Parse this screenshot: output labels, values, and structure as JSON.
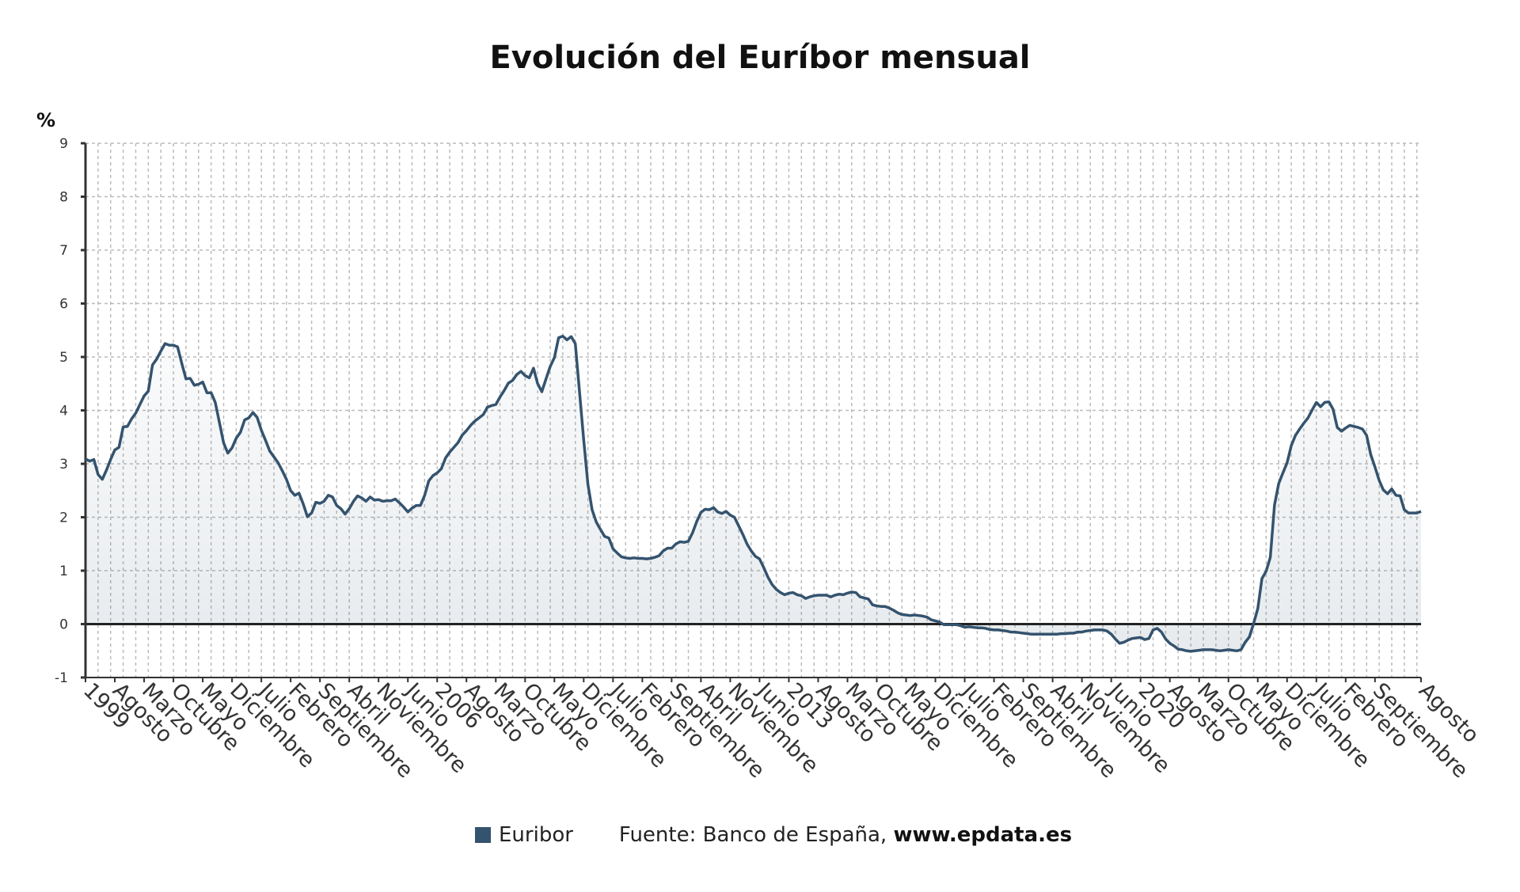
{
  "chart_data": {
    "type": "area",
    "title": "Evolución del Euríbor mensual",
    "ylabel": "%",
    "xlabel": "",
    "ylim": [
      -1,
      9
    ],
    "yticks": [
      -1,
      0,
      1,
      2,
      3,
      4,
      5,
      6,
      7,
      8,
      9
    ],
    "grid": true,
    "legend_position": "bottom",
    "start": "1999-01",
    "end": "2025-08",
    "x_tick_labels": [
      "1999",
      "Agosto",
      "Marzo",
      "Octubre",
      "Mayo",
      "Diciembre",
      "Julio",
      "Febrero",
      "Septiembre",
      "Abril",
      "Noviembre",
      "Junio",
      "2006",
      "Agosto",
      "Marzo",
      "Octubre",
      "Mayo",
      "Diciembre",
      "Julio",
      "Febrero",
      "Septiembre",
      "Abril",
      "Noviembre",
      "Junio",
      "2013",
      "Agosto",
      "Marzo",
      "Octubre",
      "Mayo",
      "Diciembre",
      "Julio",
      "Febrero",
      "Septiembre",
      "Abril",
      "Noviembre",
      "Junio",
      "2020",
      "Agosto",
      "Marzo",
      "Octubre",
      "Mayo",
      "Diciembre",
      "Julio",
      "Febrero",
      "Septiembre",
      "Agosto"
    ],
    "x_tick_dates": [
      "1999-01",
      "1999-08",
      "2000-03",
      "2000-10",
      "2001-05",
      "2001-12",
      "2002-07",
      "2003-02",
      "2003-09",
      "2004-04",
      "2004-11",
      "2005-06",
      "2006-01",
      "2006-08",
      "2007-03",
      "2007-10",
      "2008-05",
      "2008-12",
      "2009-07",
      "2010-02",
      "2010-09",
      "2011-04",
      "2011-11",
      "2012-06",
      "2013-01",
      "2013-08",
      "2014-03",
      "2014-10",
      "2015-05",
      "2015-12",
      "2016-07",
      "2017-02",
      "2017-09",
      "2018-04",
      "2018-11",
      "2019-06",
      "2020-01",
      "2020-08",
      "2021-03",
      "2021-10",
      "2022-05",
      "2022-12",
      "2023-07",
      "2024-02",
      "2024-09",
      "2025-08"
    ],
    "series": [
      {
        "name": "Euribor",
        "color": "#34536e",
        "values": [
          3.09,
          3.05,
          3.08,
          2.8,
          2.71,
          2.88,
          3.08,
          3.26,
          3.31,
          3.69,
          3.7,
          3.84,
          3.95,
          4.11,
          4.27,
          4.36,
          4.85,
          4.96,
          5.11,
          5.25,
          5.22,
          5.22,
          5.19,
          4.88,
          4.59,
          4.6,
          4.47,
          4.49,
          4.53,
          4.33,
          4.33,
          4.15,
          3.77,
          3.39,
          3.2,
          3.3,
          3.48,
          3.59,
          3.82,
          3.86,
          3.96,
          3.87,
          3.63,
          3.44,
          3.24,
          3.13,
          3.02,
          2.87,
          2.71,
          2.5,
          2.41,
          2.45,
          2.25,
          2.01,
          2.08,
          2.28,
          2.26,
          2.3,
          2.41,
          2.38,
          2.22,
          2.16,
          2.06,
          2.16,
          2.3,
          2.4,
          2.36,
          2.3,
          2.38,
          2.32,
          2.33,
          2.3,
          2.31,
          2.31,
          2.34,
          2.27,
          2.19,
          2.1,
          2.17,
          2.22,
          2.22,
          2.41,
          2.68,
          2.78,
          2.83,
          2.91,
          3.11,
          3.22,
          3.31,
          3.4,
          3.54,
          3.62,
          3.72,
          3.8,
          3.86,
          3.92,
          4.06,
          4.09,
          4.11,
          4.25,
          4.37,
          4.51,
          4.56,
          4.67,
          4.73,
          4.65,
          4.61,
          4.79,
          4.5,
          4.35,
          4.59,
          4.82,
          4.99,
          5.36,
          5.39,
          5.32,
          5.38,
          5.25,
          4.35,
          3.45,
          2.62,
          2.14,
          1.91,
          1.77,
          1.64,
          1.61,
          1.41,
          1.33,
          1.26,
          1.24,
          1.23,
          1.24,
          1.23,
          1.23,
          1.22,
          1.23,
          1.25,
          1.28,
          1.37,
          1.42,
          1.42,
          1.5,
          1.54,
          1.53,
          1.55,
          1.71,
          1.92,
          2.09,
          2.15,
          2.14,
          2.18,
          2.1,
          2.07,
          2.11,
          2.04,
          2.0,
          1.84,
          1.68,
          1.5,
          1.37,
          1.27,
          1.22,
          1.06,
          0.88,
          0.74,
          0.65,
          0.59,
          0.55,
          0.58,
          0.59,
          0.55,
          0.53,
          0.48,
          0.51,
          0.53,
          0.54,
          0.54,
          0.54,
          0.51,
          0.54,
          0.56,
          0.55,
          0.58,
          0.6,
          0.59,
          0.51,
          0.49,
          0.47,
          0.36,
          0.34,
          0.33,
          0.33,
          0.3,
          0.26,
          0.21,
          0.18,
          0.17,
          0.16,
          0.17,
          0.16,
          0.15,
          0.13,
          0.08,
          0.06,
          0.04,
          -0.01,
          -0.01,
          -0.01,
          -0.01,
          -0.03,
          -0.06,
          -0.05,
          -0.06,
          -0.07,
          -0.07,
          -0.08,
          -0.1,
          -0.11,
          -0.11,
          -0.12,
          -0.13,
          -0.15,
          -0.15,
          -0.16,
          -0.17,
          -0.18,
          -0.19,
          -0.19,
          -0.19,
          -0.19,
          -0.19,
          -0.19,
          -0.19,
          -0.18,
          -0.18,
          -0.17,
          -0.17,
          -0.15,
          -0.15,
          -0.13,
          -0.12,
          -0.11,
          -0.11,
          -0.11,
          -0.13,
          -0.19,
          -0.28,
          -0.36,
          -0.34,
          -0.3,
          -0.27,
          -0.26,
          -0.25,
          -0.29,
          -0.27,
          -0.11,
          -0.08,
          -0.15,
          -0.28,
          -0.36,
          -0.41,
          -0.47,
          -0.48,
          -0.5,
          -0.51,
          -0.5,
          -0.49,
          -0.48,
          -0.48,
          -0.48,
          -0.49,
          -0.5,
          -0.49,
          -0.48,
          -0.49,
          -0.5,
          -0.48,
          -0.34,
          -0.24,
          0.01,
          0.29,
          0.85,
          0.99,
          1.25,
          2.23,
          2.63,
          2.83,
          3.02,
          3.34,
          3.53,
          3.65,
          3.76,
          3.86,
          4.01,
          4.15,
          4.07,
          4.15,
          4.16,
          4.02,
          3.68,
          3.61,
          3.67,
          3.72,
          3.7,
          3.68,
          3.65,
          3.53,
          3.17,
          2.94,
          2.69,
          2.51,
          2.44,
          2.53,
          2.41,
          2.4,
          2.14,
          2.08,
          2.08,
          2.08,
          2.11
        ]
      }
    ]
  },
  "legend": {
    "label": "Euribor"
  },
  "source": {
    "prefix": "Fuente: Banco de España,",
    "site": "www.epdata.es"
  }
}
